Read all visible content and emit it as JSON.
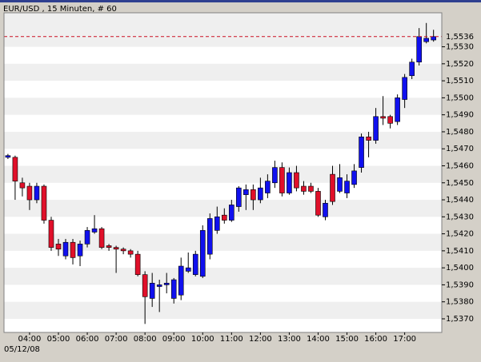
{
  "chart_data": {
    "type": "candlestick",
    "title": "EUR/USD , 15 Minuten, # 60",
    "date_label": "05/12/08",
    "categories": [
      null,
      null,
      null,
      "04:00",
      null,
      null,
      null,
      "05:00",
      null,
      null,
      null,
      "06:00",
      null,
      null,
      null,
      "07:00",
      null,
      null,
      null,
      "08:00",
      null,
      null,
      null,
      "09:00",
      null,
      null,
      null,
      "10:00",
      null,
      null,
      null,
      "11:00",
      null,
      null,
      null,
      "12:00",
      null,
      null,
      null,
      "13:00",
      null,
      null,
      null,
      "14:00",
      null,
      null,
      null,
      "15:00",
      null,
      null,
      null,
      "16:00",
      null,
      null,
      null,
      "17:00",
      null,
      null,
      null,
      null
    ],
    "open": [
      1.5465,
      1.5465,
      1.545,
      1.5448,
      1.544,
      1.5448,
      1.5428,
      1.5414,
      1.5407,
      1.5415,
      1.5407,
      1.5414,
      1.5421,
      1.5423,
      1.5413,
      1.5412,
      1.5411,
      1.541,
      1.5408,
      1.5396,
      1.5382,
      1.5389,
      1.539,
      1.5382,
      1.5384,
      1.5398,
      1.5396,
      1.5395,
      1.5408,
      1.5422,
      1.5431,
      1.5428,
      1.5436,
      1.5443,
      1.5446,
      1.544,
      1.5444,
      1.545,
      1.5459,
      1.5444,
      1.5456,
      1.5448,
      1.5448,
      1.5445,
      1.543,
      1.5455,
      1.5445,
      1.5444,
      1.5449,
      1.5459,
      1.5477,
      1.5475,
      1.5489,
      1.5489,
      1.5486,
      1.5499,
      1.5513,
      1.5521,
      1.5533,
      1.5534
    ],
    "high": [
      1.5467,
      1.5466,
      1.5453,
      1.545,
      1.545,
      1.5449,
      1.543,
      1.5417,
      1.5417,
      1.5417,
      1.5416,
      1.5424,
      1.5431,
      1.5424,
      1.5414,
      1.5413,
      1.5412,
      1.5411,
      1.541,
      1.5398,
      1.5397,
      1.5393,
      1.5397,
      1.5394,
      1.5406,
      1.5409,
      1.541,
      1.5425,
      1.5432,
      1.5436,
      1.5435,
      1.544,
      1.5448,
      1.5449,
      1.5449,
      1.5453,
      1.5455,
      1.5463,
      1.5462,
      1.5459,
      1.546,
      1.5451,
      1.545,
      1.5447,
      1.544,
      1.546,
      1.5461,
      1.5455,
      1.5461,
      1.5479,
      1.548,
      1.5494,
      1.5501,
      1.549,
      1.5502,
      1.5514,
      1.5523,
      1.5541,
      1.5544,
      1.554
    ],
    "low": [
      1.5464,
      1.544,
      1.5442,
      1.5434,
      1.5438,
      1.5426,
      1.541,
      1.5407,
      1.5405,
      1.5402,
      1.5401,
      1.5412,
      1.542,
      1.5411,
      1.541,
      1.5397,
      1.5408,
      1.5406,
      1.5395,
      1.5367,
      1.5377,
      1.5374,
      1.5385,
      1.5379,
      1.5381,
      1.5397,
      1.5395,
      1.5394,
      1.5405,
      1.542,
      1.5426,
      1.5427,
      1.5433,
      1.5434,
      1.5434,
      1.5438,
      1.5441,
      1.5447,
      1.5442,
      1.5443,
      1.5445,
      1.5443,
      1.5444,
      1.543,
      1.5428,
      1.5437,
      1.5444,
      1.5441,
      1.5447,
      1.5456,
      1.5465,
      1.5473,
      1.5484,
      1.5482,
      1.5484,
      1.5494,
      1.5511,
      1.5519,
      1.5532,
      1.5533
    ],
    "close": [
      1.5466,
      1.5451,
      1.5447,
      1.544,
      1.5448,
      1.5428,
      1.5412,
      1.5411,
      1.5415,
      1.5406,
      1.5414,
      1.5422,
      1.5423,
      1.5412,
      1.5412,
      1.5411,
      1.541,
      1.5408,
      1.5396,
      1.5383,
      1.5391,
      1.539,
      1.5391,
      1.5393,
      1.5401,
      1.54,
      1.5408,
      1.5422,
      1.5429,
      1.543,
      1.5428,
      1.5437,
      1.5447,
      1.5446,
      1.544,
      1.5447,
      1.5451,
      1.5459,
      1.5444,
      1.5456,
      1.5447,
      1.5445,
      1.5445,
      1.5431,
      1.5438,
      1.5439,
      1.5453,
      1.5451,
      1.5457,
      1.5477,
      1.5475,
      1.5489,
      1.5488,
      1.5485,
      1.55,
      1.5512,
      1.5521,
      1.5536,
      1.5535,
      1.5536
    ],
    "up_color": "#1010ee",
    "down_color": "#e0102a",
    "ylim": [
      1.5362,
      1.555
    ],
    "yticks": [
      {
        "value": 1.537,
        "label": "1,5370"
      },
      {
        "value": 1.538,
        "label": "1,5380"
      },
      {
        "value": 1.539,
        "label": "1,5390"
      },
      {
        "value": 1.54,
        "label": "1,5400"
      },
      {
        "value": 1.541,
        "label": "1,5410"
      },
      {
        "value": 1.542,
        "label": "1,5420"
      },
      {
        "value": 1.543,
        "label": "1,5430"
      },
      {
        "value": 1.544,
        "label": "1,5440"
      },
      {
        "value": 1.545,
        "label": "1,5450"
      },
      {
        "value": 1.546,
        "label": "1,5460"
      },
      {
        "value": 1.547,
        "label": "1,5470"
      },
      {
        "value": 1.548,
        "label": "1,5480"
      },
      {
        "value": 1.549,
        "label": "1,5490"
      },
      {
        "value": 1.55,
        "label": "1,5500"
      },
      {
        "value": 1.551,
        "label": "1,5510"
      },
      {
        "value": 1.552,
        "label": "1,5520"
      },
      {
        "value": 1.553,
        "label": "1,5530"
      }
    ],
    "last_price": {
      "value": 1.5536,
      "label": "1,5536"
    },
    "last_price_color": "#cc1122"
  }
}
